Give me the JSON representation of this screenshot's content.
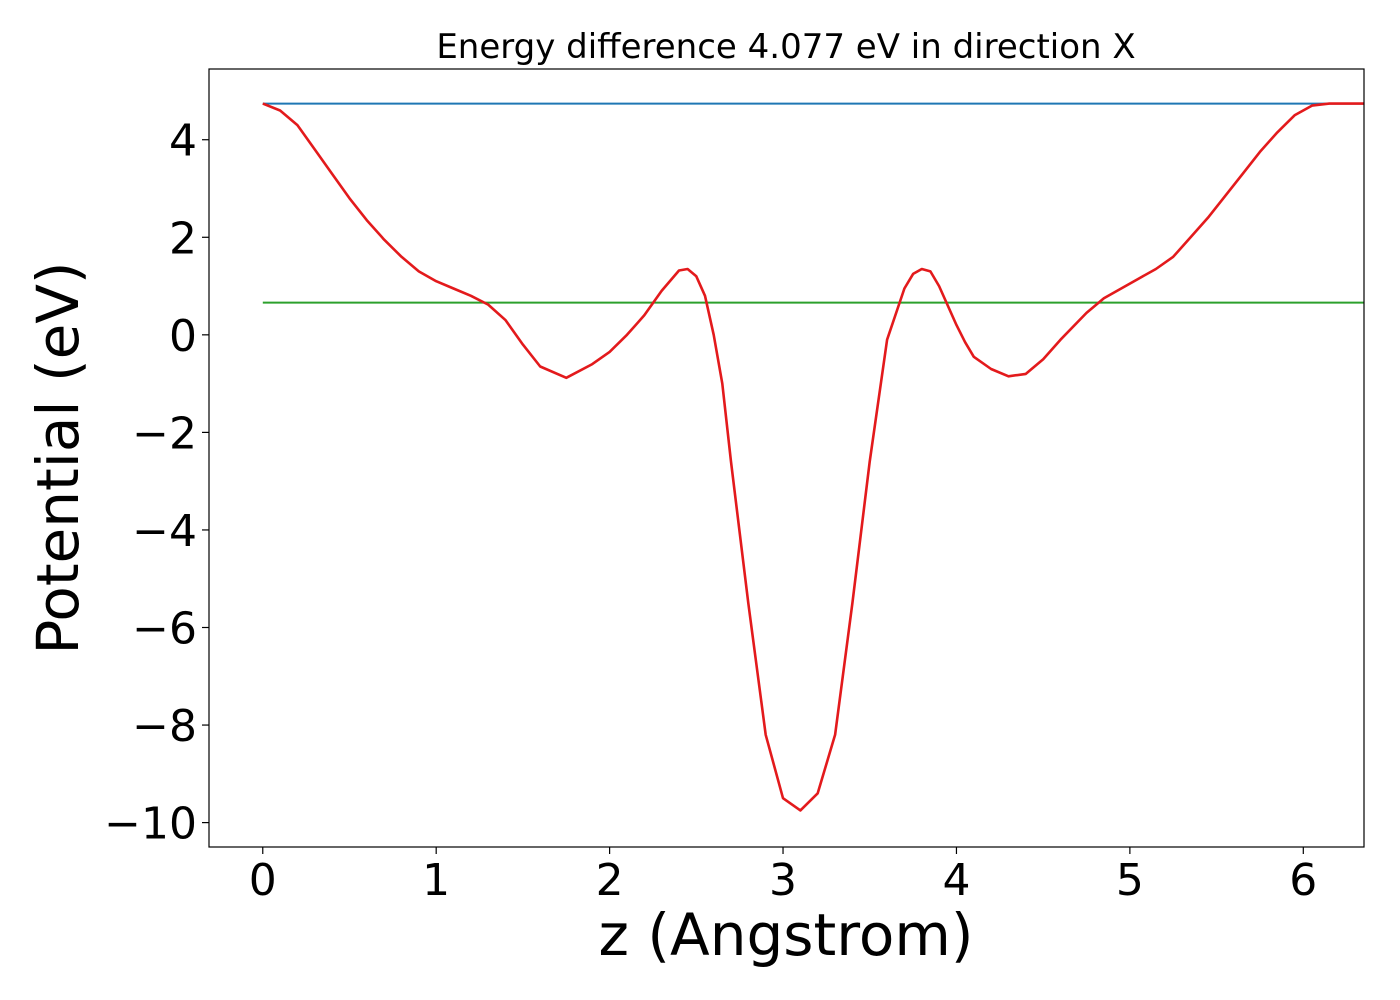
{
  "chart_data": {
    "type": "line",
    "title": "Energy difference 4.077 eV in direction X",
    "xlabel": "z (Angstrom)",
    "ylabel": "Potential (eV)",
    "xlim": [
      -0.31,
      6.35
    ],
    "ylim": [
      -10.5,
      5.45
    ],
    "xticks": [
      0,
      1,
      2,
      3,
      4,
      5,
      6
    ],
    "yticks": [
      -10,
      -8,
      -6,
      -4,
      -2,
      0,
      2,
      4
    ],
    "xtick_labels": [
      "0",
      "1",
      "2",
      "3",
      "4",
      "5",
      "6"
    ],
    "ytick_labels": [
      "−10",
      "−8",
      "−6",
      "−4",
      "−2",
      "0",
      "2",
      "4"
    ],
    "grid": false,
    "series": [
      {
        "color": "#1f77b4",
        "x": [
          0,
          6.35
        ],
        "y": [
          4.74,
          4.74
        ]
      },
      {
        "color": "#2ca02c",
        "x": [
          0,
          6.35
        ],
        "y": [
          0.66,
          0.66
        ]
      },
      {
        "color": "#e31a1c",
        "x": [
          0,
          0.1,
          0.2,
          0.3,
          0.4,
          0.5,
          0.6,
          0.7,
          0.8,
          0.9,
          1.0,
          1.1,
          1.2,
          1.3,
          1.4,
          1.5,
          1.6,
          1.75,
          1.9,
          2.0,
          2.1,
          2.2,
          2.3,
          2.4,
          2.45,
          2.5,
          2.55,
          2.6,
          2.65,
          2.7,
          2.8,
          2.9,
          3.0,
          3.1,
          3.2,
          3.3,
          3.4,
          3.5,
          3.6,
          3.7,
          3.75,
          3.8,
          3.85,
          3.9,
          3.95,
          4.0,
          4.05,
          4.1,
          4.2,
          4.3,
          4.4,
          4.5,
          4.6,
          4.75,
          4.85,
          4.95,
          5.05,
          5.15,
          5.25,
          5.35,
          5.45,
          5.55,
          5.65,
          5.75,
          5.85,
          5.95,
          6.05,
          6.15,
          6.25,
          6.35
        ],
        "y": [
          4.74,
          4.6,
          4.3,
          3.8,
          3.3,
          2.8,
          2.35,
          1.95,
          1.6,
          1.3,
          1.1,
          0.95,
          0.8,
          0.62,
          0.3,
          -0.2,
          -0.65,
          -0.88,
          -0.6,
          -0.35,
          0.0,
          0.4,
          0.9,
          1.32,
          1.35,
          1.2,
          0.8,
          0.0,
          -1.0,
          -2.6,
          -5.5,
          -8.2,
          -9.5,
          -9.75,
          -9.4,
          -8.2,
          -5.5,
          -2.6,
          -0.1,
          0.95,
          1.25,
          1.35,
          1.3,
          1.0,
          0.6,
          0.2,
          -0.15,
          -0.45,
          -0.7,
          -0.85,
          -0.8,
          -0.5,
          -0.1,
          0.45,
          0.75,
          0.95,
          1.15,
          1.35,
          1.6,
          2.0,
          2.4,
          2.85,
          3.3,
          3.75,
          4.15,
          4.5,
          4.7,
          4.74,
          4.74,
          4.74
        ]
      }
    ]
  }
}
